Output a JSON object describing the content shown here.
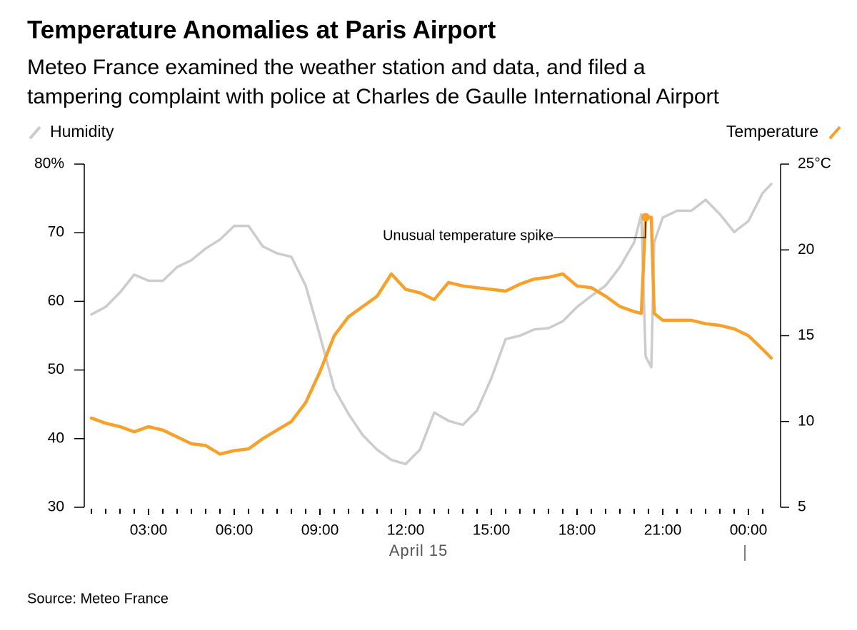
{
  "chart_data": {
    "type": "line",
    "title": "Temperature Anomalies at Paris Airport",
    "subtitle": [
      "Meteo France examined the weather station and data, and filed a",
      "tampering complaint with police at Charles de Gaulle International Airport"
    ],
    "source": "Source: Meteo France",
    "annotation": "Unusual temperature spike",
    "date_label": "April 15",
    "x": [
      1,
      1.5,
      2,
      2.5,
      3,
      3.5,
      4,
      4.5,
      5,
      5.5,
      6,
      6.5,
      7,
      7.5,
      8,
      8.5,
      9,
      9.5,
      10,
      10.5,
      11,
      11.5,
      12,
      12.5,
      13,
      13.5,
      14,
      14.5,
      15,
      15.5,
      16,
      16.5,
      17,
      17.5,
      18,
      18.5,
      19,
      19.5,
      20,
      20.25,
      20.4,
      20.6,
      20.7,
      21,
      21.5,
      22,
      22.5,
      23,
      23.5,
      24,
      24.5,
      24.8
    ],
    "xlim": [
      0.75,
      25.125
    ],
    "xticks": [
      {
        "value": 3,
        "label": "03:00"
      },
      {
        "value": 6,
        "label": "06:00"
      },
      {
        "value": 9,
        "label": "09:00"
      },
      {
        "value": 12,
        "label": "12:00"
      },
      {
        "value": 15,
        "label": "15:00"
      },
      {
        "value": 18,
        "label": "18:00"
      },
      {
        "value": 21,
        "label": "21:00"
      },
      {
        "value": 24,
        "label": "00:00"
      }
    ],
    "xminorticks": [
      1,
      1.5,
      2,
      2.5,
      3.5,
      4,
      4.5,
      5,
      5.5,
      6.5,
      7,
      7.5,
      8,
      8.5,
      9.5,
      10,
      10.5,
      11,
      11.5,
      12.5,
      13,
      13.5,
      14,
      14.5,
      15.5,
      16,
      16.5,
      17,
      17.5,
      18.5,
      19,
      19.5,
      20,
      20.5,
      21.5,
      22,
      22.5,
      23,
      23.5,
      24.5
    ],
    "ylim": [
      30,
      80
    ],
    "yticks": [
      30,
      40,
      50,
      60,
      70,
      {
        "value": 80,
        "label": "80%"
      }
    ],
    "y2lim": [
      5,
      25
    ],
    "y2ticks": [
      5,
      10,
      15,
      20,
      {
        "value": 25,
        "label": "25°C"
      }
    ],
    "series": [
      {
        "name": "Humidity",
        "color": "#cccccc",
        "axis": "y",
        "values": [
          58.1,
          59.2,
          61.3,
          63.9,
          63,
          63,
          65,
          66,
          67.7,
          69,
          71,
          71,
          68,
          67,
          66.5,
          62.3,
          55,
          47.3,
          43.6,
          40.5,
          38.4,
          36.9,
          36.3,
          38.4,
          43.8,
          42.6,
          42,
          44.1,
          48.8,
          54.5,
          55,
          55.9,
          56.1,
          57.1,
          59.2,
          60.8,
          62.3,
          65,
          68.6,
          72.7,
          52,
          50.4,
          68.6,
          72.2,
          73.2,
          73.2,
          74.8,
          72.7,
          70.1,
          71.7,
          75.8,
          77.1
        ]
      },
      {
        "name": "Temperature",
        "color": "#f7a12d",
        "axis": "y2",
        "values": [
          10.2,
          9.9,
          9.7,
          9.4,
          9.7,
          9.5,
          9.1,
          8.7,
          8.6,
          8.1,
          8.3,
          8.4,
          9.0,
          9.5,
          10.0,
          11.1,
          12.9,
          15.0,
          16.1,
          16.7,
          17.3,
          18.6,
          17.7,
          17.5,
          17.1,
          18.1,
          17.9,
          17.8,
          17.7,
          17.6,
          18.0,
          18.3,
          18.4,
          18.6,
          17.9,
          17.8,
          17.3,
          16.7,
          16.4,
          16.3,
          21.9,
          21.9,
          16.3,
          15.9,
          15.9,
          15.9,
          15.7,
          15.6,
          15.4,
          15.0,
          14.2,
          13.7
        ]
      }
    ]
  }
}
